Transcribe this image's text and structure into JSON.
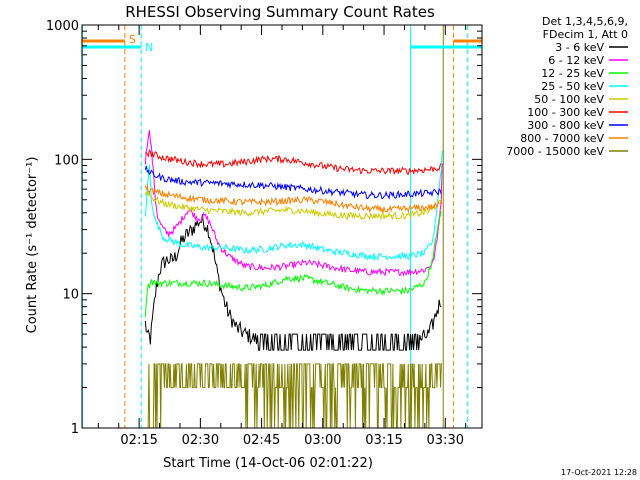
{
  "chart_data": {
    "type": "line",
    "title": "RHESSI Observing Summary Count Rates",
    "xlabel": "Start Time (14-Oct-06 02:01:22)",
    "ylabel": "Count Rate (s⁻¹ detector⁻¹)",
    "y_scale": "log",
    "ylim": [
      1,
      1000
    ],
    "xlim_minutes": [
      0,
      98
    ],
    "x_ticks": [
      {
        "label": "02:15",
        "minute": 14
      },
      {
        "label": "02:30",
        "minute": 29
      },
      {
        "label": "02:45",
        "minute": 44
      },
      {
        "label": "03:00",
        "minute": 59
      },
      {
        "label": "03:15",
        "minute": 74
      },
      {
        "label": "03:30",
        "minute": 89
      }
    ],
    "y_ticks": [
      {
        "label": "1",
        "value": 1
      },
      {
        "label": "10",
        "value": 10
      },
      {
        "label": "100",
        "value": 100
      },
      {
        "label": "1000",
        "value": 1000
      }
    ],
    "legend_header": [
      "Det 1,3,4,5,6,9,",
      "FDecim 1, Att 0"
    ],
    "legend_placement": "right",
    "series": [
      {
        "name": "3 - 6 keV",
        "color": "#000000",
        "x": [
          15.5,
          16,
          16.6,
          17.2,
          18,
          19,
          20,
          21,
          22,
          23,
          24,
          25,
          26,
          27,
          28,
          29,
          30,
          31,
          32,
          33,
          34,
          35,
          36,
          38,
          40,
          45,
          50,
          55,
          60,
          65,
          70,
          75,
          80,
          85,
          86,
          87,
          88
        ],
        "values": [
          6,
          5,
          4.2,
          6,
          10,
          15,
          17,
          18,
          17.5,
          19,
          23,
          26,
          28,
          30,
          33,
          35,
          34,
          30,
          22,
          15,
          11,
          8.5,
          7,
          5.5,
          5,
          4.2,
          4,
          3.8,
          3.8,
          3.8,
          3.8,
          3.8,
          4,
          5,
          6,
          7.5,
          9
        ]
      },
      {
        "name": "6 - 12 keV",
        "color": "#ff00ff",
        "x": [
          15.5,
          16,
          16.4,
          17,
          17.5,
          18,
          18.5,
          19,
          20,
          21,
          22,
          23,
          24,
          25,
          26,
          27,
          28,
          29,
          30,
          31,
          32,
          33,
          34,
          36,
          40,
          45,
          50,
          55,
          60,
          65,
          70,
          75,
          80,
          84,
          86,
          87,
          88,
          88.3
        ],
        "values": [
          95,
          130,
          170,
          120,
          80,
          50,
          38,
          34,
          30,
          28,
          29,
          31,
          34,
          38,
          42,
          40,
          37,
          36,
          38,
          35,
          30,
          25,
          22,
          19,
          16,
          15.5,
          16,
          17,
          16,
          15,
          14.5,
          14.5,
          14.5,
          15,
          17,
          25,
          50,
          100
        ]
      },
      {
        "name": "12 - 25 keV",
        "color": "#00ff00",
        "x": [
          15.5,
          16,
          17,
          18,
          20,
          22,
          25,
          30,
          35,
          40,
          45,
          50,
          55,
          60,
          65,
          70,
          75,
          80,
          84,
          86,
          87,
          88
        ],
        "values": [
          7,
          11,
          12.5,
          12,
          12,
          12,
          12,
          12,
          11.5,
          11,
          11.5,
          13,
          13,
          12,
          11,
          10.5,
          10.5,
          10.5,
          12,
          18,
          30,
          40
        ]
      },
      {
        "name": "25 - 50 keV",
        "color": "#00ffff",
        "x": [
          15.5,
          16,
          16.5,
          17,
          18,
          20,
          25,
          30,
          35,
          40,
          45,
          50,
          55,
          60,
          65,
          70,
          75,
          80,
          84,
          86,
          87,
          88,
          88.3
        ],
        "values": [
          38,
          60,
          90,
          50,
          35,
          26,
          23,
          22,
          22,
          21,
          21.5,
          23,
          23,
          21,
          20,
          19,
          19,
          19,
          20,
          25,
          45,
          85,
          120
        ]
      },
      {
        "name": "50 - 100 keV",
        "color": "#cccc00",
        "x": [
          15.5,
          16,
          17,
          20,
          25,
          30,
          35,
          40,
          45,
          50,
          55,
          60,
          65,
          70,
          75,
          80,
          85,
          86,
          87,
          88
        ],
        "values": [
          55,
          58,
          52,
          47,
          44,
          42,
          41,
          40,
          41,
          42,
          41,
          39,
          38,
          38,
          38,
          38,
          41,
          43,
          46,
          48
        ]
      },
      {
        "name": "100 - 300 keV",
        "color": "#ff0000",
        "x": [
          15.5,
          17,
          20,
          25,
          30,
          35,
          40,
          45,
          50,
          55,
          60,
          65,
          70,
          75,
          80,
          85,
          87,
          88
        ],
        "values": [
          113,
          110,
          103,
          96,
          92,
          92,
          96,
          101,
          100,
          94,
          88,
          84,
          82,
          82,
          82,
          84,
          86,
          88
        ]
      },
      {
        "name": "300 - 800 keV",
        "color": "#0000ff",
        "x": [
          15.5,
          17,
          20,
          25,
          30,
          35,
          40,
          45,
          50,
          55,
          60,
          65,
          70,
          75,
          80,
          85,
          87,
          88
        ],
        "values": [
          86,
          78,
          72,
          68,
          67,
          66,
          65,
          64,
          62,
          60,
          58,
          56,
          54,
          54,
          55,
          56,
          57,
          58
        ]
      },
      {
        "name": "800 - 7000 keV",
        "color": "#ff8000",
        "x": [
          15.5,
          17,
          20,
          25,
          30,
          35,
          40,
          45,
          50,
          55,
          60,
          65,
          70,
          75,
          80,
          85,
          87,
          88
        ],
        "values": [
          62,
          58,
          55,
          52,
          50,
          49,
          48,
          48,
          49,
          50,
          48,
          45,
          43,
          42,
          43,
          44,
          45,
          47
        ]
      },
      {
        "name": "7000 - 15000 keV",
        "color": "#808000",
        "values_range": [
          1,
          3
        ]
      }
    ],
    "annotations": [
      {
        "text": "S",
        "color": "#ff8000",
        "type": "dashed-vline",
        "x_minute": 10.5
      },
      {
        "text": "N",
        "color": "#00ffff",
        "type": "dashed-vline",
        "x_minute": 14.5
      },
      {
        "type": "solid-vline",
        "color": "#00ffff",
        "x_minute": 0.1
      },
      {
        "type": "solid-vline",
        "color": "#00ffff",
        "x_minute": 80.5
      },
      {
        "type": "solid-vline",
        "color": "#808000",
        "x_minute": 88.5
      },
      {
        "type": "dashed-vline",
        "color": "#ff8000",
        "x_minute": 91
      },
      {
        "type": "dashed-vline",
        "color": "#00ffff",
        "x_minute": 94.5
      }
    ],
    "footer_timestamp": "17-Oct-2021 12:28"
  }
}
